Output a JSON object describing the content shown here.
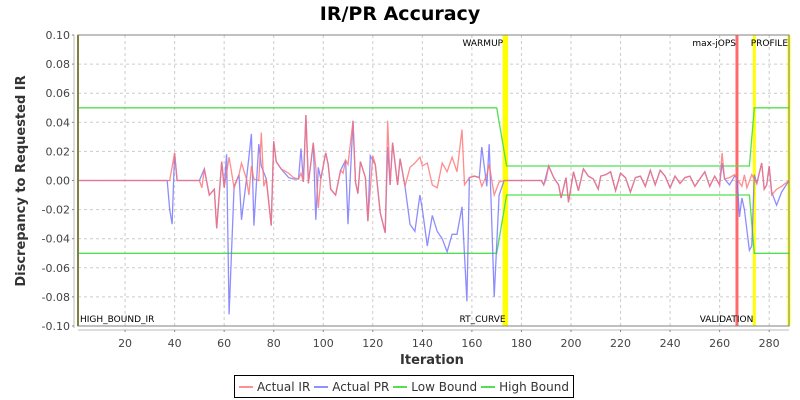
{
  "chart_data": {
    "type": "line",
    "title": "IR/PR Accuracy",
    "xlabel": "Iteration",
    "ylabel": "Discrepancy to Requested IR",
    "xlim": [
      1,
      288
    ],
    "ylim": [
      -0.1,
      0.1
    ],
    "x_ticks": [
      20,
      40,
      60,
      80,
      100,
      120,
      140,
      160,
      180,
      200,
      220,
      240,
      260,
      280
    ],
    "y_ticks": [
      "0.10",
      "0.08",
      "0.06",
      "0.04",
      "0.02",
      "0.00",
      "-0.02",
      "-0.04",
      "-0.06",
      "-0.08",
      "-0.10"
    ],
    "grid": true,
    "legend_position": "bottom",
    "series": [
      {
        "name": "Actual IR",
        "color": "#ff7070",
        "points": [
          [
            1,
            0
          ],
          [
            38,
            0
          ],
          [
            40,
            0.019
          ],
          [
            41,
            0
          ],
          [
            50,
            0
          ],
          [
            51,
            -0.005
          ],
          [
            52,
            0.008
          ],
          [
            54,
            -0.01
          ],
          [
            56,
            -0.006
          ],
          [
            57,
            -0.033
          ],
          [
            59,
            0.013
          ],
          [
            60,
            -0.005
          ],
          [
            62,
            0.016
          ],
          [
            64,
            -0.005
          ],
          [
            66,
            0.004
          ],
          [
            67,
            0.012
          ],
          [
            69,
            0.001
          ],
          [
            70,
            -0.01
          ],
          [
            71,
            0.01
          ],
          [
            72,
            0.001
          ],
          [
            74,
            0
          ],
          [
            75,
            0.033
          ],
          [
            76,
            -0.004
          ],
          [
            77,
            0.001
          ],
          [
            79,
            -0.031
          ],
          [
            80,
            0.027
          ],
          [
            81,
            0.013
          ],
          [
            83,
            0.008
          ],
          [
            86,
            0.005
          ],
          [
            88,
            0.002
          ],
          [
            90,
            0.001
          ],
          [
            91,
            0.005
          ],
          [
            92,
            -0.001
          ],
          [
            93,
            0.045
          ],
          [
            94,
            -0.002
          ],
          [
            96,
            0.026
          ],
          [
            97,
            0.009
          ],
          [
            98,
            -0.019
          ],
          [
            99,
            0.001
          ],
          [
            101,
            0.019
          ],
          [
            102,
            0.011
          ],
          [
            103,
            -0.006
          ],
          [
            105,
            -0.01
          ],
          [
            107,
            0.007
          ],
          [
            108,
            0.005
          ],
          [
            109,
            0.014
          ],
          [
            110,
            0.011
          ],
          [
            112,
            0.041
          ],
          [
            113,
            -0.001
          ],
          [
            114,
            -0.009
          ],
          [
            115,
            0.013
          ],
          [
            117,
            0.002
          ],
          [
            118,
            -0.028
          ],
          [
            120,
            0.017
          ],
          [
            121,
            0.011
          ],
          [
            123,
            -0.022
          ],
          [
            125,
            -0.036
          ],
          [
            126,
            0.041
          ],
          [
            127,
            -0.003
          ],
          [
            128,
            0.026
          ],
          [
            130,
            -0.003
          ],
          [
            131,
            0.015
          ],
          [
            133,
            -0.004
          ],
          [
            135,
            0.009
          ],
          [
            137,
            0.012
          ],
          [
            139,
            0.016
          ],
          [
            140,
            0.01
          ],
          [
            142,
            0.012
          ],
          [
            144,
            -0.003
          ],
          [
            146,
            -0.005
          ],
          [
            148,
            0.012
          ],
          [
            150,
            0.006
          ],
          [
            152,
            0.016
          ],
          [
            154,
            0.006
          ],
          [
            156,
            0.035
          ],
          [
            157,
            -0.003
          ],
          [
            159,
            0.002
          ],
          [
            161,
            0.003
          ],
          [
            163,
            0.002
          ],
          [
            164,
            -0.004
          ],
          [
            166,
            0.004
          ],
          [
            167,
            0.011
          ],
          [
            169,
            -0.01
          ],
          [
            171,
            -0.001
          ],
          [
            173,
            0
          ],
          [
            188,
            0
          ],
          [
            189,
            -0.003
          ],
          [
            190,
            0.001
          ],
          [
            191,
            0.01
          ],
          [
            193,
            0.002
          ],
          [
            195,
            -0.003
          ],
          [
            196,
            -0.012
          ],
          [
            198,
            0.002
          ],
          [
            199,
            -0.015
          ],
          [
            201,
            0.006
          ],
          [
            203,
            -0.007
          ],
          [
            205,
            0.008
          ],
          [
            207,
            0.003
          ],
          [
            209,
            0.001
          ],
          [
            211,
            -0.006
          ],
          [
            212,
            0.003
          ],
          [
            214,
            0.004
          ],
          [
            216,
            0.006
          ],
          [
            218,
            -0.007
          ],
          [
            220,
            0.005
          ],
          [
            222,
            0.002
          ],
          [
            224,
            -0.008
          ],
          [
            226,
            0.002
          ],
          [
            228,
            0.003
          ],
          [
            230,
            -0.004
          ],
          [
            232,
            0.007
          ],
          [
            234,
            -0.003
          ],
          [
            236,
            0.007
          ],
          [
            238,
            0.003
          ],
          [
            240,
            -0.005
          ],
          [
            242,
            0.003
          ],
          [
            244,
            -0.002
          ],
          [
            246,
            0.002
          ],
          [
            248,
            0.003
          ],
          [
            250,
            -0.004
          ],
          [
            252,
            0.001
          ],
          [
            254,
            0.006
          ],
          [
            256,
            -0.004
          ],
          [
            258,
            0.003
          ],
          [
            260,
            -0.003
          ],
          [
            261,
            0.019
          ],
          [
            262,
            0.001
          ],
          [
            264,
            0.002
          ],
          [
            266,
            0.004
          ],
          [
            267,
            0.001
          ],
          [
            269,
            -0.004
          ],
          [
            270,
            0.004
          ],
          [
            271,
            -0.005
          ],
          [
            273,
            0.004
          ],
          [
            275,
            -0.002
          ],
          [
            277,
            0.012
          ],
          [
            278,
            -0.006
          ],
          [
            279,
            -0.003
          ],
          [
            280,
            0.01
          ],
          [
            281,
            -0.01
          ],
          [
            283,
            -0.006
          ],
          [
            285,
            -0.004
          ],
          [
            288,
            0
          ]
        ]
      },
      {
        "name": "Actual PR",
        "color": "#7070ff",
        "points": [
          [
            1,
            0
          ],
          [
            37,
            0
          ],
          [
            38,
            -0.02
          ],
          [
            39,
            -0.03
          ],
          [
            40,
            0.019
          ],
          [
            41,
            0
          ],
          [
            50,
            0
          ],
          [
            52,
            0.008
          ],
          [
            54,
            -0.01
          ],
          [
            56,
            -0.006
          ],
          [
            57,
            -0.033
          ],
          [
            59,
            0.013
          ],
          [
            60,
            -0.005
          ],
          [
            61,
            0.018
          ],
          [
            62,
            -0.092
          ],
          [
            64,
            -0.004
          ],
          [
            66,
            0.004
          ],
          [
            67,
            -0.027
          ],
          [
            69,
            0.001
          ],
          [
            71,
            0.032
          ],
          [
            72,
            -0.031
          ],
          [
            74,
            0.025
          ],
          [
            75,
            0.01
          ],
          [
            77,
            0.001
          ],
          [
            79,
            -0.031
          ],
          [
            80,
            0.027
          ],
          [
            81,
            0.013
          ],
          [
            83,
            0.008
          ],
          [
            86,
            0.002
          ],
          [
            88,
            0.001
          ],
          [
            90,
            0.001
          ],
          [
            91,
            0.022
          ],
          [
            92,
            -0.001
          ],
          [
            93,
            0.045
          ],
          [
            94,
            -0.002
          ],
          [
            96,
            0.026
          ],
          [
            97,
            -0.027
          ],
          [
            98,
            0.009
          ],
          [
            99,
            0.001
          ],
          [
            101,
            0.019
          ],
          [
            102,
            0.011
          ],
          [
            103,
            -0.006
          ],
          [
            105,
            -0.01
          ],
          [
            107,
            0.007
          ],
          [
            109,
            0.014
          ],
          [
            110,
            -0.03
          ],
          [
            112,
            0.041
          ],
          [
            113,
            -0.001
          ],
          [
            114,
            -0.009
          ],
          [
            115,
            0.013
          ],
          [
            117,
            0.002
          ],
          [
            118,
            -0.028
          ],
          [
            119,
            0.017
          ],
          [
            121,
            0.011
          ],
          [
            123,
            -0.022
          ],
          [
            125,
            -0.036
          ],
          [
            126,
            0.023
          ],
          [
            127,
            -0.003
          ],
          [
            128,
            0.026
          ],
          [
            130,
            -0.003
          ],
          [
            131,
            0.015
          ],
          [
            133,
            -0.004
          ],
          [
            135,
            -0.03
          ],
          [
            137,
            -0.035
          ],
          [
            139,
            -0.01
          ],
          [
            140,
            -0.02
          ],
          [
            142,
            -0.045
          ],
          [
            144,
            -0.024
          ],
          [
            146,
            -0.035
          ],
          [
            148,
            -0.04
          ],
          [
            150,
            -0.049
          ],
          [
            152,
            -0.037
          ],
          [
            154,
            -0.037
          ],
          [
            156,
            -0.018
          ],
          [
            158,
            -0.083
          ],
          [
            159,
            0.002
          ],
          [
            161,
            0.003
          ],
          [
            163,
            0.002
          ],
          [
            164,
            0.023
          ],
          [
            166,
            -0.004
          ],
          [
            167,
            0.025
          ],
          [
            169,
            -0.08
          ],
          [
            171,
            -0.01
          ],
          [
            173,
            0
          ],
          [
            188,
            0
          ],
          [
            189,
            -0.003
          ],
          [
            191,
            0.01
          ],
          [
            193,
            0.002
          ],
          [
            195,
            -0.003
          ],
          [
            196,
            -0.012
          ],
          [
            198,
            0.002
          ],
          [
            199,
            -0.015
          ],
          [
            201,
            0.006
          ],
          [
            203,
            -0.007
          ],
          [
            205,
            0.008
          ],
          [
            207,
            0.003
          ],
          [
            209,
            0.001
          ],
          [
            211,
            -0.006
          ],
          [
            212,
            0.003
          ],
          [
            214,
            0.004
          ],
          [
            216,
            0.006
          ],
          [
            218,
            -0.007
          ],
          [
            220,
            0.005
          ],
          [
            222,
            0.002
          ],
          [
            224,
            -0.008
          ],
          [
            226,
            0.002
          ],
          [
            228,
            0.003
          ],
          [
            230,
            -0.004
          ],
          [
            232,
            0.007
          ],
          [
            234,
            -0.003
          ],
          [
            236,
            0.007
          ],
          [
            238,
            0.003
          ],
          [
            240,
            -0.005
          ],
          [
            242,
            0.003
          ],
          [
            244,
            -0.002
          ],
          [
            246,
            0.002
          ],
          [
            248,
            0.003
          ],
          [
            250,
            -0.004
          ],
          [
            252,
            0.001
          ],
          [
            254,
            0.006
          ],
          [
            256,
            -0.004
          ],
          [
            258,
            0.003
          ],
          [
            260,
            -0.003
          ],
          [
            261,
            0.012
          ],
          [
            262,
            0.001
          ],
          [
            264,
            -0.003
          ],
          [
            266,
            0.003
          ],
          [
            267,
            0.002
          ],
          [
            268,
            -0.025
          ],
          [
            269,
            -0.012
          ],
          [
            270,
            -0.02
          ],
          [
            272,
            -0.048
          ],
          [
            273,
            -0.045
          ],
          [
            274,
            0.004
          ],
          [
            275,
            -0.002
          ],
          [
            277,
            0.012
          ],
          [
            278,
            -0.006
          ],
          [
            279,
            -0.003
          ],
          [
            280,
            0.01
          ],
          [
            281,
            -0.008
          ],
          [
            283,
            -0.017
          ],
          [
            285,
            -0.008
          ],
          [
            288,
            0
          ]
        ]
      },
      {
        "name": "Low Bound",
        "color": "#50e050",
        "points": [
          [
            1,
            -0.05
          ],
          [
            170,
            -0.05
          ],
          [
            174,
            -0.01
          ],
          [
            272,
            -0.01
          ],
          [
            274,
            -0.05
          ],
          [
            288,
            -0.05
          ]
        ]
      },
      {
        "name": "High Bound",
        "color": "#50e050",
        "points": [
          [
            1,
            0.05
          ],
          [
            170,
            0.05
          ],
          [
            174,
            0.01
          ],
          [
            272,
            0.01
          ],
          [
            274,
            0.05
          ],
          [
            288,
            0.05
          ]
        ]
      }
    ],
    "markers": [
      {
        "label": "HIGH_BOUND_IR",
        "x": 1,
        "color": "#808040",
        "label_pos": "bottom"
      },
      {
        "label": "WARMUP",
        "x": 173,
        "color": "#ffff00",
        "label_pos": "top"
      },
      {
        "label": "RT_CURVE",
        "x": 174,
        "color": "#ffff00",
        "label_pos": "bottom"
      },
      {
        "label": "max-jOPS",
        "x": 267,
        "color": "#ff5050",
        "label_pos": "top"
      },
      {
        "label": "VALIDATION",
        "x": 274,
        "color": "#ffff00",
        "label_pos": "bottom"
      },
      {
        "label": "PROFILE",
        "x": 288,
        "color": "#ffff00",
        "label_pos": "top"
      }
    ]
  },
  "legend": {
    "items": [
      {
        "label": "Actual IR",
        "color": "#ff9090"
      },
      {
        "label": "Actual PR",
        "color": "#9090ff"
      },
      {
        "label": "Low Bound",
        "color": "#50e050"
      },
      {
        "label": "High Bound",
        "color": "#50e050"
      }
    ]
  }
}
